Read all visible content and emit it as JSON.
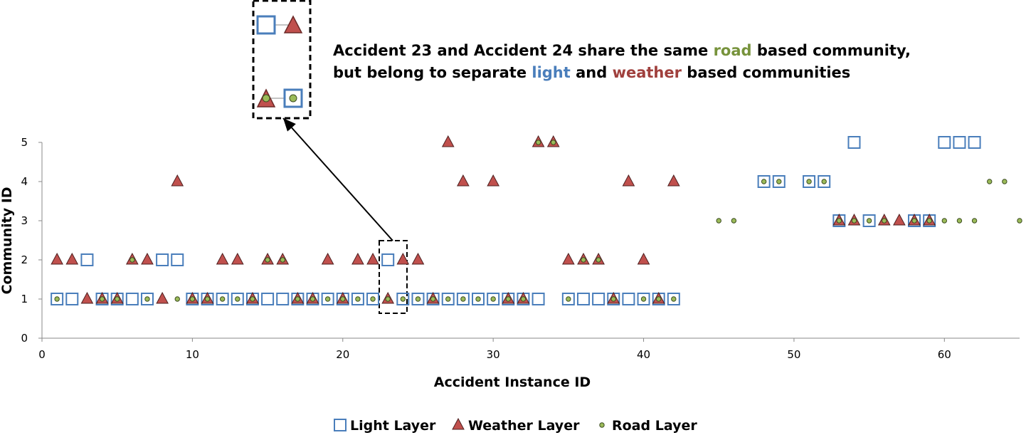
{
  "chart_data": {
    "type": "scatter",
    "annotation_lines": [
      [
        {
          "text": "Accident 23 and Accident 24 share the same ",
          "color": "#000000"
        },
        {
          "text": "road",
          "color": "#77933c"
        },
        {
          "text": " based community,",
          "color": "#000000"
        }
      ],
      [
        {
          "text": "but belong to separate ",
          "color": "#000000"
        },
        {
          "text": "light",
          "color": "#4a7ebb"
        },
        {
          "text": " and ",
          "color": "#000000"
        },
        {
          "text": "weather",
          "color": "#a0403d"
        },
        {
          "text": " based communities",
          "color": "#000000"
        }
      ]
    ],
    "x_label": "Accident Instance ID",
    "y_label": "Community ID",
    "xlim": [
      0,
      65
    ],
    "xticks": [
      0,
      10,
      20,
      30,
      40,
      50,
      60
    ],
    "ylim": [
      0,
      5
    ],
    "yticks": [
      0,
      1,
      2,
      3,
      4,
      5
    ],
    "series": [
      {
        "name": "Light Layer",
        "color": "#4a7ebb",
        "x": [
          1,
          2,
          3,
          4,
          5,
          6,
          7,
          8,
          9,
          10,
          11,
          12,
          13,
          14,
          15,
          16,
          17,
          18,
          19,
          20,
          21,
          22,
          23,
          24,
          25,
          26,
          27,
          28,
          29,
          30,
          31,
          32,
          33,
          35,
          36,
          37,
          38,
          39,
          40,
          41,
          42,
          48,
          49,
          51,
          52,
          53,
          54,
          55,
          58,
          59,
          60,
          61,
          62
        ],
        "values": [
          1,
          1,
          2,
          1,
          1,
          1,
          1,
          2,
          2,
          1,
          1,
          1,
          1,
          1,
          1,
          1,
          1,
          1,
          1,
          1,
          1,
          1,
          2,
          1,
          1,
          1,
          1,
          1,
          1,
          1,
          1,
          1,
          1,
          1,
          1,
          1,
          1,
          1,
          1,
          1,
          1,
          4,
          4,
          4,
          4,
          3,
          5,
          3,
          3,
          3,
          5,
          5,
          5
        ]
      },
      {
        "name": "Weather Layer",
        "color": "#c0504d",
        "x": [
          1,
          2,
          3,
          4,
          5,
          6,
          7,
          8,
          9,
          10,
          11,
          12,
          13,
          14,
          15,
          16,
          17,
          18,
          19,
          20,
          21,
          22,
          23,
          24,
          25,
          26,
          27,
          28,
          30,
          31,
          32,
          33,
          34,
          35,
          36,
          37,
          38,
          39,
          40,
          41,
          42,
          53,
          54,
          56,
          57,
          58,
          59
        ],
        "values": [
          2,
          2,
          1,
          1,
          1,
          2,
          2,
          1,
          4,
          1,
          1,
          2,
          2,
          1,
          2,
          2,
          1,
          1,
          2,
          1,
          2,
          2,
          1,
          2,
          2,
          1,
          5,
          4,
          4,
          1,
          1,
          5,
          5,
          2,
          2,
          2,
          1,
          4,
          2,
          1,
          4,
          3,
          3,
          3,
          3,
          3,
          3
        ]
      },
      {
        "name": "Road Layer",
        "color": "#9bbb59",
        "x": [
          1,
          4,
          5,
          6,
          7,
          9,
          10,
          11,
          12,
          13,
          14,
          15,
          16,
          17,
          18,
          19,
          20,
          21,
          22,
          23,
          24,
          25,
          26,
          27,
          28,
          29,
          30,
          31,
          32,
          33,
          34,
          35,
          36,
          37,
          38,
          40,
          41,
          42,
          45,
          46,
          48,
          49,
          51,
          52,
          53,
          54,
          55,
          56,
          58,
          59,
          60,
          61,
          62,
          63,
          64,
          65
        ],
        "values": [
          1,
          1,
          1,
          2,
          1,
          1,
          1,
          1,
          1,
          1,
          1,
          2,
          2,
          1,
          1,
          1,
          1,
          1,
          1,
          1,
          1,
          1,
          1,
          1,
          1,
          1,
          1,
          1,
          1,
          5,
          5,
          1,
          2,
          2,
          1,
          1,
          1,
          1,
          3,
          3,
          4,
          4,
          4,
          4,
          3,
          3,
          3,
          3,
          3,
          3,
          3,
          3,
          3,
          4,
          4,
          3
        ]
      }
    ],
    "legend": "bottom",
    "grid": false
  }
}
